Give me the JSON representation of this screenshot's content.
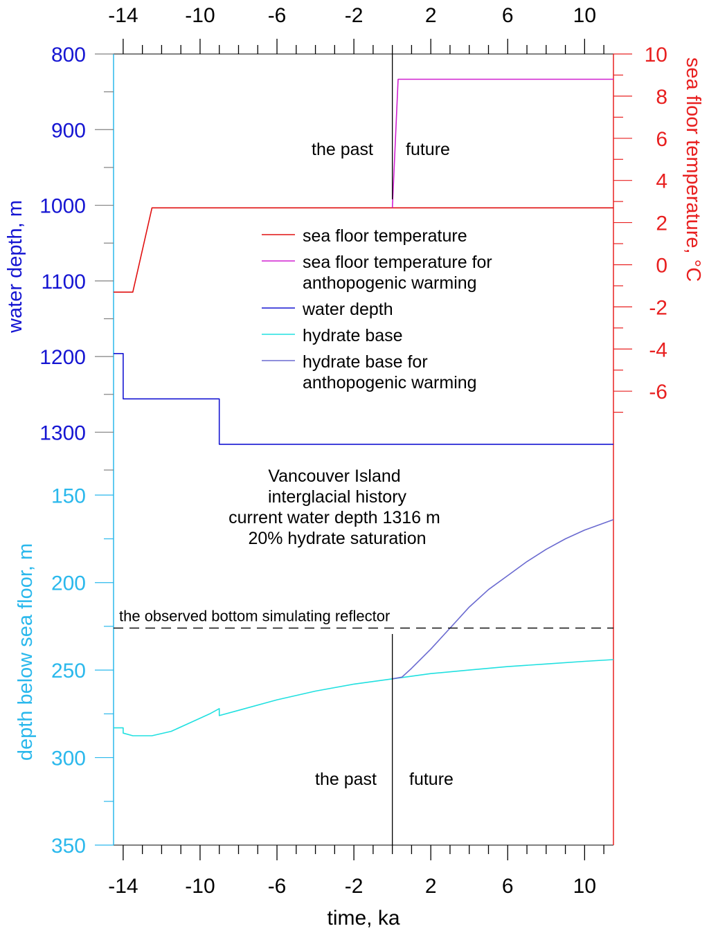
{
  "chart_data": {
    "type": "line",
    "xlabel": "time, ka",
    "xlim": [
      -14.5,
      11.5
    ],
    "xticks": [
      -14,
      -10,
      -6,
      -2,
      2,
      6,
      10
    ],
    "annotations": {
      "title_lines": [
        "Vancouver Island",
        "interglacial history",
        "current water depth 1316 m",
        "20% hydrate saturation"
      ],
      "past_label": "the past",
      "future_label": "future",
      "bsr_label": "the observed bottom simulating reflector",
      "bsr_depth": 226
    },
    "colors": {
      "water_depth": "#1515d2",
      "temperature": "#e01010",
      "temperature_aw": "#d020d0",
      "hydrate": "#20e0e0",
      "hydrate_aw": "#6a6ad0",
      "axis_temp": "#e82020",
      "axis_hbase": "#2ab8ec"
    },
    "legend": [
      {
        "label_lines": [
          "sea floor temperature"
        ],
        "color_key": "temperature"
      },
      {
        "label_lines": [
          "sea floor temperature for",
          "anthopogenic warming"
        ],
        "color_key": "temperature_aw"
      },
      {
        "label_lines": [
          "water depth"
        ],
        "color_key": "water_depth"
      },
      {
        "label_lines": [
          "hydrate base"
        ],
        "color_key": "hydrate"
      },
      {
        "label_lines": [
          "hydrate base for",
          "anthopogenic warming"
        ],
        "color_key": "hydrate_aw"
      }
    ],
    "upper_panel": {
      "left_axis": {
        "label": "water depth, m",
        "ylim": [
          800,
          1360
        ],
        "ticks": [
          800,
          900,
          1000,
          1100,
          1200,
          1300
        ]
      },
      "right_axis": {
        "label": "sea floor temperature, °C",
        "ylim": [
          -10.1,
          10
        ],
        "ticks": [
          10,
          8,
          6,
          4,
          2,
          0,
          -2,
          -4,
          -6
        ]
      },
      "series": [
        {
          "name": "sea floor temperature",
          "axis": "right",
          "color_key": "temperature",
          "x": [
            -14.5,
            -13.5,
            -12.5,
            11.5
          ],
          "y": [
            -1.3,
            -1.3,
            2.7,
            2.7
          ]
        },
        {
          "name": "sea floor temperature for anthopogenic warming",
          "axis": "right",
          "color_key": "temperature_aw",
          "x": [
            0,
            0.3,
            11.5
          ],
          "y": [
            2.7,
            8.8,
            8.8
          ]
        },
        {
          "name": "water depth",
          "axis": "left",
          "color_key": "water_depth",
          "x": [
            -14.5,
            -14,
            -14,
            -9,
            -9,
            11.5
          ],
          "y": [
            1196,
            1196,
            1256,
            1256,
            1316,
            1316
          ]
        }
      ]
    },
    "lower_panel": {
      "left_axis": {
        "label": "depth below sea floor, m",
        "ylim": [
          350,
          140
        ],
        "ticks": [
          150,
          200,
          250,
          300,
          350
        ]
      },
      "series": [
        {
          "name": "hydrate base",
          "axis": "left",
          "color_key": "hydrate",
          "x": [
            -14.5,
            -14,
            -14,
            -13.5,
            -12.5,
            -11.5,
            -10.5,
            -9.5,
            -9,
            -9,
            -8,
            -6,
            -4,
            -2,
            0,
            2,
            4,
            6,
            8,
            10,
            11.5
          ],
          "y": [
            283,
            283,
            286,
            287.5,
            287.5,
            285,
            280,
            275,
            272,
            276,
            273,
            267,
            262,
            258,
            255,
            252,
            250,
            248,
            246.5,
            245,
            244
          ]
        },
        {
          "name": "hydrate base for anthopogenic warming",
          "axis": "left",
          "color_key": "hydrate_aw",
          "x": [
            0,
            0.5,
            1,
            2,
            3,
            4,
            5,
            6,
            7,
            8,
            9,
            10,
            11.5
          ],
          "y": [
            255,
            254,
            249,
            238,
            226,
            214,
            204,
            196,
            188,
            181,
            175,
            170,
            164
          ]
        }
      ]
    }
  }
}
